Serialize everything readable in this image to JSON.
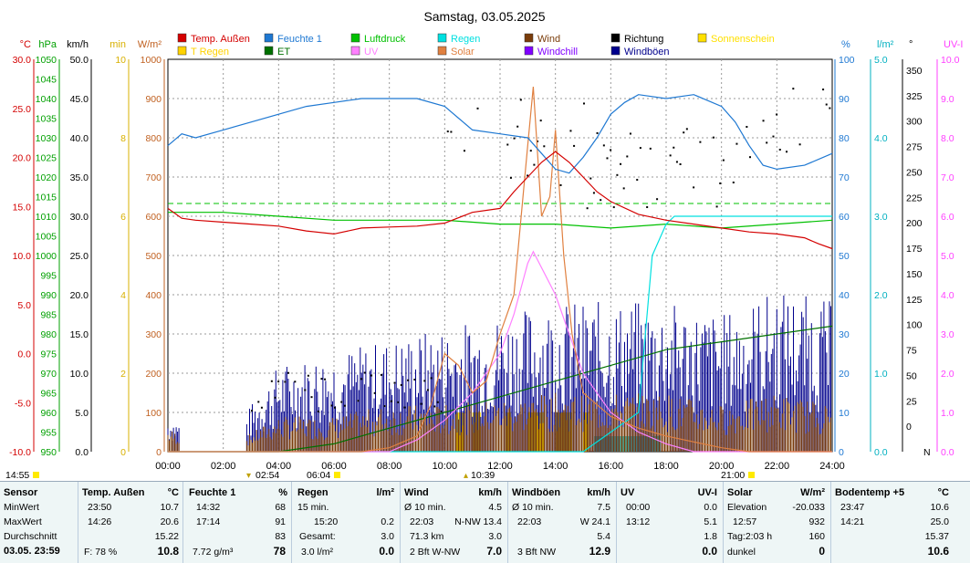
{
  "chart_data": {
    "type": "line",
    "title": "Samstag, 03.05.2025",
    "x_ticks": [
      "00:00",
      "02:00",
      "04:00",
      "06:00",
      "08:00",
      "10:00",
      "12:00",
      "14:00",
      "16:00",
      "18:00",
      "20:00",
      "22:00",
      "24:00"
    ],
    "legend": [
      {
        "name": "Temp. Außen",
        "color": "#d40000"
      },
      {
        "name": "Feuchte 1",
        "color": "#1e78d2"
      },
      {
        "name": "Luftdruck",
        "color": "#00c000"
      },
      {
        "name": "Regen",
        "color": "#00e0e0"
      },
      {
        "name": "Wind",
        "color": "#7a3c0a"
      },
      {
        "name": "Richtung",
        "color": "#000000"
      },
      {
        "name": "Sonnenschein",
        "color": "#ffe000"
      },
      {
        "name": "T Regen",
        "color": "#ffd200"
      },
      {
        "name": "ET",
        "color": "#007000"
      },
      {
        "name": "UV",
        "color": "#ff80ff"
      },
      {
        "name": "Solar",
        "color": "#e08040"
      },
      {
        "name": "Windchill",
        "color": "#8000ff"
      },
      {
        "name": "Windböen",
        "color": "#00008c"
      }
    ],
    "axes_left": [
      {
        "unit": "°C",
        "color": "#d40000",
        "ticks": [
          "30.0",
          "25.0",
          "20.0",
          "15.0",
          "10.0",
          "5.0",
          "0.0",
          "-5.0",
          "-10.0"
        ]
      },
      {
        "unit": "hPa",
        "color": "#00a000",
        "ticks": [
          "1050",
          "1045",
          "1040",
          "1035",
          "1030",
          "1025",
          "1020",
          "1015",
          "1010",
          "1005",
          "1000",
          "995",
          "990",
          "985",
          "980",
          "975",
          "970",
          "965",
          "960",
          "955",
          "950"
        ]
      },
      {
        "unit": "km/h",
        "color": "#000000",
        "ticks": [
          "50.0",
          "45.0",
          "40.0",
          "35.0",
          "30.0",
          "25.0",
          "20.0",
          "15.0",
          "10.0",
          "5.0",
          "0.0"
        ]
      },
      {
        "unit": "min",
        "color": "#d8b000",
        "ticks": [
          "10",
          "8",
          "6",
          "4",
          "2",
          "0"
        ]
      },
      {
        "unit": "W/m²",
        "color": "#c06020",
        "ticks": [
          "1000",
          "900",
          "800",
          "700",
          "600",
          "500",
          "400",
          "300",
          "200",
          "100",
          "0"
        ]
      }
    ],
    "axes_right": [
      {
        "unit": "%",
        "color": "#1e78d2",
        "ticks": [
          "100",
          "90",
          "80",
          "70",
          "60",
          "50",
          "40",
          "30",
          "20",
          "10",
          "0"
        ]
      },
      {
        "unit": "l/m²",
        "color": "#00b0c0",
        "ticks": [
          "5.0",
          "4.0",
          "3.0",
          "2.0",
          "1.0",
          "0.0"
        ]
      },
      {
        "unit": "°",
        "color": "#000000",
        "ticks": [
          "350",
          "325",
          "300",
          "275",
          "250",
          "225",
          "200",
          "175",
          "150",
          "125",
          "100",
          "75",
          "50",
          "25",
          "0"
        ],
        "extra_label": "N"
      },
      {
        "unit": "UV-I",
        "color": "#ff40ff",
        "ticks": [
          "10.0",
          "9.0",
          "8.0",
          "7.0",
          "6.0",
          "5.0",
          "4.0",
          "3.0",
          "2.0",
          "1.0",
          "0.0"
        ]
      }
    ],
    "series": [
      {
        "name": "Temp. Außen",
        "unit": "°C",
        "x": [
          0,
          0.5,
          1,
          2,
          3,
          4,
          5,
          6,
          7,
          8,
          9,
          10,
          11,
          12,
          12.5,
          13,
          13.5,
          14,
          14.5,
          15,
          15.5,
          16,
          17,
          18,
          19,
          20,
          21,
          22,
          23,
          23.5,
          24
        ],
        "y": [
          14.8,
          13.8,
          13.6,
          13.4,
          13.2,
          13.0,
          12.5,
          12.2,
          12.8,
          12.9,
          13.0,
          13.3,
          14.4,
          14.8,
          16.5,
          18.0,
          19.5,
          20.6,
          19.5,
          18.0,
          16.5,
          15.5,
          14.2,
          13.6,
          13.2,
          12.8,
          12.4,
          12.2,
          11.8,
          11.2,
          10.7
        ]
      },
      {
        "name": "Feuchte 1",
        "unit": "%",
        "x": [
          0,
          0.5,
          1,
          2,
          3,
          4,
          5,
          6,
          7,
          8,
          9,
          10,
          10.5,
          11,
          12,
          13,
          13.5,
          14,
          14.5,
          15,
          15.5,
          16,
          16.5,
          17,
          18,
          19,
          20,
          20.5,
          21,
          21.5,
          22,
          23,
          24
        ],
        "y": [
          78,
          81,
          80,
          82,
          84,
          86,
          88,
          89,
          90,
          90,
          90,
          88,
          85,
          82,
          81,
          80,
          76,
          72,
          71,
          75,
          80,
          86,
          89,
          91,
          90,
          91,
          88,
          84,
          78,
          73,
          72,
          73,
          76
        ]
      },
      {
        "name": "Luftdruck",
        "unit": "hPa",
        "x": [
          0,
          2,
          4,
          6,
          8,
          10,
          12,
          14,
          16,
          18,
          20,
          22,
          24
        ],
        "y": [
          1011,
          1011,
          1010,
          1009,
          1009,
          1009,
          1008,
          1008,
          1007,
          1008,
          1007,
          1008,
          1009
        ]
      },
      {
        "name": "Regen",
        "unit": "l/m²",
        "x": [
          0,
          15,
          17,
          17.5,
          18,
          18.3,
          24
        ],
        "y": [
          0,
          0,
          0.5,
          2.5,
          2.9,
          3.0,
          3.0
        ]
      },
      {
        "name": "ET",
        "unit": "l/m²",
        "x": [
          0,
          4,
          6,
          8,
          10,
          12,
          14,
          16,
          18,
          20,
          22,
          24
        ],
        "y": [
          0,
          0,
          0.1,
          0.3,
          0.5,
          0.7,
          0.9,
          1.1,
          1.3,
          1.4,
          1.5,
          1.6
        ]
      },
      {
        "name": "Solar",
        "unit": "W/m²",
        "x": [
          0,
          7,
          8,
          9,
          9.5,
          10,
          10.5,
          11,
          11.5,
          12,
          12.5,
          13,
          13.2,
          13.5,
          13.8,
          14,
          14.3,
          14.6,
          15,
          16,
          17,
          18,
          19,
          20,
          21,
          24
        ],
        "y": [
          0,
          0,
          10,
          40,
          120,
          250,
          220,
          150,
          180,
          300,
          400,
          780,
          930,
          600,
          650,
          820,
          500,
          300,
          150,
          90,
          60,
          40,
          25,
          10,
          0,
          0
        ]
      },
      {
        "name": "UV",
        "unit": "UV-I",
        "x": [
          0,
          8,
          9,
          10,
          11,
          12,
          12.5,
          13,
          13.2,
          14,
          14.5,
          15,
          16,
          17,
          18,
          19,
          24
        ],
        "y": [
          0,
          0,
          0.3,
          0.8,
          1.5,
          2.5,
          3.5,
          4.8,
          5.1,
          4.0,
          3.0,
          2.0,
          1.0,
          0.5,
          0.2,
          0,
          0
        ]
      },
      {
        "name": "Wind",
        "unit": "km/h",
        "x": [
          0,
          2,
          4,
          6,
          8,
          10,
          12,
          14,
          16,
          18,
          20,
          22,
          24
        ],
        "y": [
          2.0,
          0.2,
          3.0,
          3.0,
          4.0,
          4.0,
          4.5,
          5.0,
          5.0,
          5.0,
          4.0,
          5.0,
          4.0
        ]
      },
      {
        "name": "Windböen",
        "unit": "km/h",
        "x": [
          0,
          2,
          4,
          6,
          8,
          10,
          12,
          14,
          16,
          18,
          20,
          22,
          24
        ],
        "y": [
          3.0,
          0.5,
          7.0,
          8.0,
          9.0,
          10.0,
          11.0,
          12.0,
          12.0,
          12.0,
          11.0,
          13.0,
          12.0
        ]
      }
    ],
    "sunrise": "06:04",
    "sunset": "21:00",
    "moonrise": "10:39",
    "moonset": "02:54",
    "start_label": "14:55"
  },
  "stats": {
    "sensor": {
      "title": "Sensor",
      "rows": [
        "MinWert",
        "MaxWert",
        "Durchschnitt"
      ],
      "date": "03.05. 23:59"
    },
    "temp": {
      "title": "Temp. Außen",
      "unit": "°C",
      "min_time": "23:50",
      "min": "10.7",
      "max_time": "14:26",
      "max": "20.6",
      "avg": "15.22",
      "cur_label": "F: 78 %",
      "cur": "10.8"
    },
    "hum": {
      "title": "Feuchte 1",
      "unit": "%",
      "min_time": "14:32",
      "min": "68",
      "max_time": "17:14",
      "max": "91",
      "avg": "83",
      "cur_label": "7.72 g/m³",
      "cur": "78"
    },
    "rain": {
      "title": "Regen",
      "unit": "l/m²",
      "r1_label": "15 min.",
      "r1": "",
      "r2_label": "15:20",
      "r2": "0.2",
      "r3_label": "Gesamt:",
      "r3": "3.0",
      "cur_label": "3.0 l/m²",
      "cur": "0.0"
    },
    "wind": {
      "title": "Wind",
      "unit": "km/h",
      "r1_label": "Ø 10 min.",
      "r1": "4.5",
      "r2_label": "22:03",
      "r2_mid": "N-NW 13.4",
      "r2": "",
      "r3_label": "71.3 km",
      "r3": "3.0",
      "cur_label": "2 Bft W-NW",
      "cur": "7.0"
    },
    "gust": {
      "title": "Windböen",
      "unit": "km/h",
      "r1_label": "Ø 10 min.",
      "r1": "7.5",
      "r2_label": "22:03",
      "r2": "W 24.1",
      "r3": "5.4",
      "cur_label": "3 Bft NW",
      "cur": "12.9"
    },
    "uv": {
      "title": "UV",
      "unit": "UV-I",
      "min_time": "00:00",
      "min": "0.0",
      "max_time": "13:12",
      "max": "5.1",
      "avg": "1.8",
      "cur": "0.0"
    },
    "solar": {
      "title": "Solar",
      "unit": "W/m²",
      "r1_label": "Elevation",
      "r1": "-20.033",
      "r2_label": "12:57",
      "r2": "932",
      "r3_label": "Tag:2:03 h",
      "r3": "160",
      "cur_label": "dunkel",
      "cur": "0"
    },
    "soil": {
      "title": "Bodentemp +5",
      "unit": "°C",
      "min_time": "23:47",
      "min": "10.6",
      "max_time": "14:21",
      "max": "25.0",
      "avg": "15.37",
      "cur": "10.6"
    }
  }
}
